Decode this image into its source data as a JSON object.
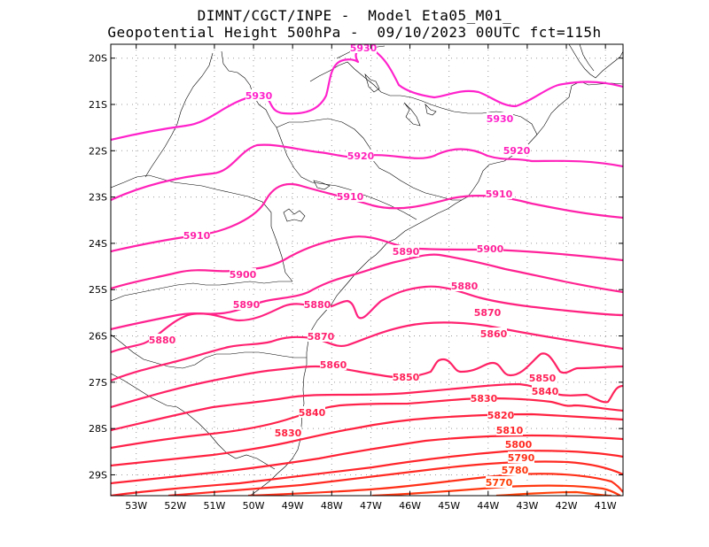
{
  "header": {
    "line1": "DIMNT/CGCT/INPE -  Model Eta05_M01_",
    "line2": "Geopotential Height 500hPa -  09/10/2023 00UTC fct=115h"
  },
  "map": {
    "lat_labels": [
      "20S",
      "21S",
      "22S",
      "23S",
      "24S",
      "25S",
      "26S",
      "27S",
      "28S",
      "29S"
    ],
    "lon_labels": [
      "53W",
      "52W",
      "51W",
      "50W",
      "49W",
      "48W",
      "47W",
      "46W",
      "45W",
      "44W",
      "43W",
      "42W",
      "41W"
    ],
    "lat_range": [
      -29.45,
      -19.7
    ],
    "lon_range": [
      -53.65,
      -40.55
    ],
    "grid": true
  },
  "contours": [
    {
      "value": 5930,
      "label": "5930",
      "color": "#ff22cc"
    },
    {
      "value": 5920,
      "label": "5920",
      "color": "#ff22bb"
    },
    {
      "value": 5910,
      "label": "5910",
      "color": "#ff22aa"
    },
    {
      "value": 5900,
      "label": "5900",
      "color": "#ff229a"
    },
    {
      "value": 5890,
      "label": "5890",
      "color": "#ff2290"
    },
    {
      "value": 5880,
      "label": "5880",
      "color": "#ff2280"
    },
    {
      "value": 5870,
      "label": "5870",
      "color": "#ff2270"
    },
    {
      "value": 5860,
      "label": "5860",
      "color": "#ff2265"
    },
    {
      "value": 5850,
      "label": "5850",
      "color": "#ff2258"
    },
    {
      "value": 5840,
      "label": "5840",
      "color": "#ff224a"
    },
    {
      "value": 5830,
      "label": "5830",
      "color": "#ff2240"
    },
    {
      "value": 5820,
      "label": "5820",
      "color": "#ff2235"
    },
    {
      "value": 5810,
      "label": "5810",
      "color": "#ff252a"
    },
    {
      "value": 5800,
      "label": "5800",
      "color": "#ff2a22"
    },
    {
      "value": 5790,
      "label": "5790",
      "color": "#ff3018"
    },
    {
      "value": 5780,
      "label": "5780",
      "color": "#ff3810"
    },
    {
      "value": 5770,
      "label": "5770",
      "color": "#ff4008"
    }
  ]
}
